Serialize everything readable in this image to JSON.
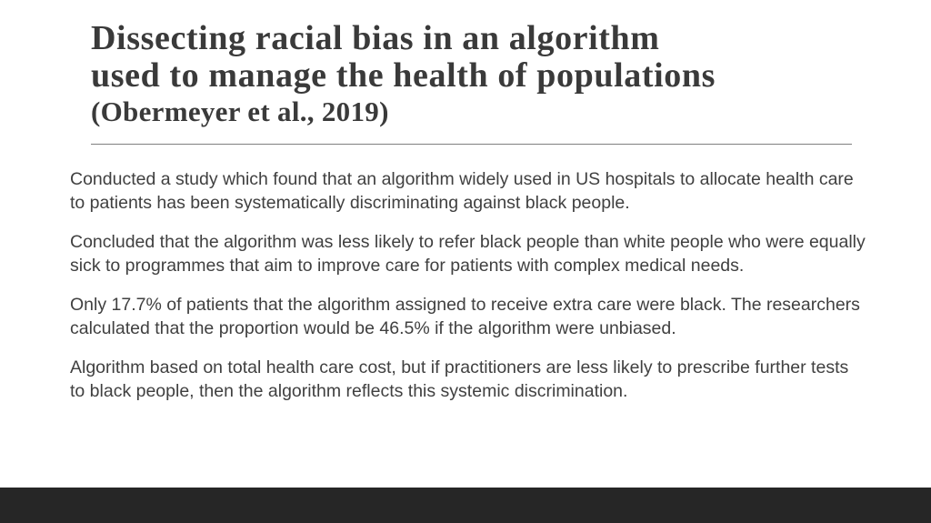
{
  "header": {
    "title": [
      "Dissecting racial bias in an algorithm",
      "used to manage the health of populations"
    ],
    "subtitle": "(Obermeyer et al., 2019)"
  },
  "body": {
    "paragraphs": [
      "Conducted a study which found that an algorithm widely used in US hospitals to allocate health care to patients has been systematically discriminating against black people.",
      "Concluded that the algorithm was less likely to refer black people than white people who were equally sick to programmes that aim to improve care for patients with complex medical needs.",
      "Only 17.7% of patients that the algorithm assigned to receive extra care were black. The researchers calculated that the proportion would be 46.5% if the algorithm were unbiased.",
      "Algorithm based on total health care cost, but if practitioners are less likely to prescribe further tests to black people, then the algorithm reflects this systemic discrimination."
    ]
  }
}
